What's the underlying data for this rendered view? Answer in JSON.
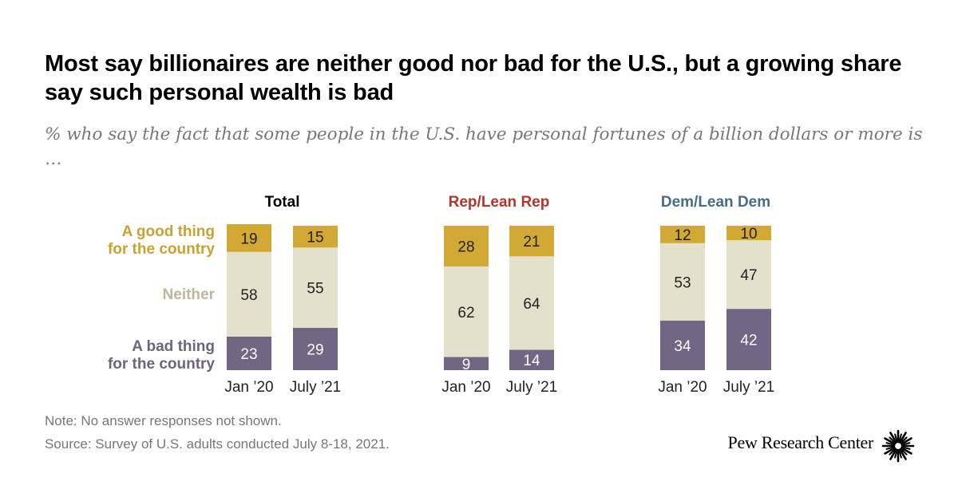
{
  "title": "Most say billionaires are neither good nor bad for the U.S., but a growing share say such personal wealth is bad",
  "subtitle": "% who say the fact that some people in the U.S. have personal fortunes of a billion dollars or more is …",
  "colors": {
    "good": "#D2A934",
    "neither": "#E3E0CC",
    "bad": "#716683",
    "good_label": "#C9A22F",
    "neither_label": "#BDB79C",
    "bad_label": "#6C6480",
    "rep_title": "#B5342A",
    "dem_title": "#476C88",
    "total_title": "#000000"
  },
  "chart_data": {
    "type": "bar",
    "stacked": true,
    "unit": "%",
    "legend": {
      "good": [
        "A good thing",
        "for the country"
      ],
      "neither": [
        "Neither"
      ],
      "bad": [
        "A bad thing",
        "for the country"
      ]
    },
    "panels": [
      {
        "title": "Total",
        "categories": [
          "Jan ’20",
          "July ’21"
        ],
        "series": [
          {
            "name": "A bad thing for the country",
            "key": "bad",
            "values": [
              23,
              29
            ]
          },
          {
            "name": "Neither",
            "key": "neither",
            "values": [
              58,
              55
            ]
          },
          {
            "name": "A good thing for the country",
            "key": "good",
            "values": [
              19,
              15
            ]
          }
        ]
      },
      {
        "title": "Rep/Lean Rep",
        "categories": [
          "Jan ’20",
          "July ’21"
        ],
        "series": [
          {
            "name": "A bad thing for the country",
            "key": "bad",
            "values": [
              9,
              14
            ]
          },
          {
            "name": "Neither",
            "key": "neither",
            "values": [
              62,
              64
            ]
          },
          {
            "name": "A good thing for the country",
            "key": "good",
            "values": [
              28,
              21
            ]
          }
        ]
      },
      {
        "title": "Dem/Lean Dem",
        "categories": [
          "Jan ’20",
          "July ’21"
        ],
        "series": [
          {
            "name": "A bad thing for the country",
            "key": "bad",
            "values": [
              34,
              42
            ]
          },
          {
            "name": "Neither",
            "key": "neither",
            "values": [
              53,
              47
            ]
          },
          {
            "name": "A good thing for the country",
            "key": "good",
            "values": [
              12,
              10
            ]
          }
        ]
      }
    ]
  },
  "notes": {
    "note": "Note: No answer responses not shown.",
    "source": "Source: Survey of U.S. adults conducted July 8-18, 2021."
  },
  "logo": {
    "text": "Pew Research Center"
  }
}
